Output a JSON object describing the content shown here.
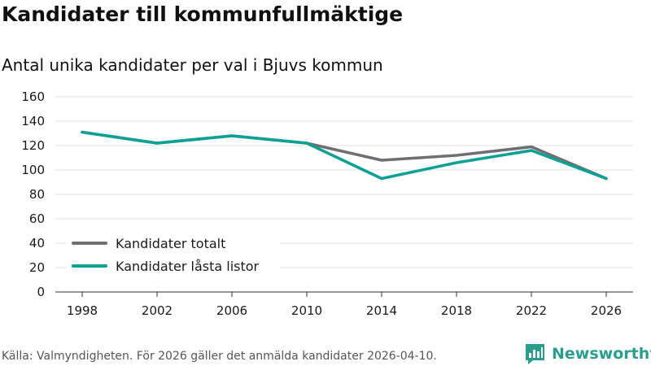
{
  "chart_data": {
    "type": "line",
    "title": "Kandidater till kommunfullmäktige",
    "subtitle": "Antal unika kandidater per val i Bjuvs kommun",
    "xlabel": "",
    "ylabel": "",
    "categories": [
      "1998",
      "2002",
      "2006",
      "2010",
      "2014",
      "2018",
      "2022",
      "2026"
    ],
    "ylim": [
      0,
      160
    ],
    "yticks": [
      0,
      20,
      40,
      60,
      80,
      100,
      120,
      140,
      160
    ],
    "grid": true,
    "legend_position": "bottom-left",
    "series": [
      {
        "name": "Kandidater totalt",
        "color": "#6f6e73",
        "values": [
          131,
          122,
          128,
          122,
          108,
          112,
          119,
          93
        ]
      },
      {
        "name": "Kandidater låsta listor",
        "color": "#0aa194",
        "values": [
          131,
          122,
          128,
          122,
          93,
          106,
          116,
          93
        ]
      }
    ]
  },
  "footer": {
    "source": "Källa: Valmyndigheten. För 2026 gäller det anmälda kandidater 2026-04-10."
  },
  "brand": {
    "name": "Newsworthy",
    "icon": "newsworthy-logo-icon",
    "color": "#2a9d8f"
  }
}
